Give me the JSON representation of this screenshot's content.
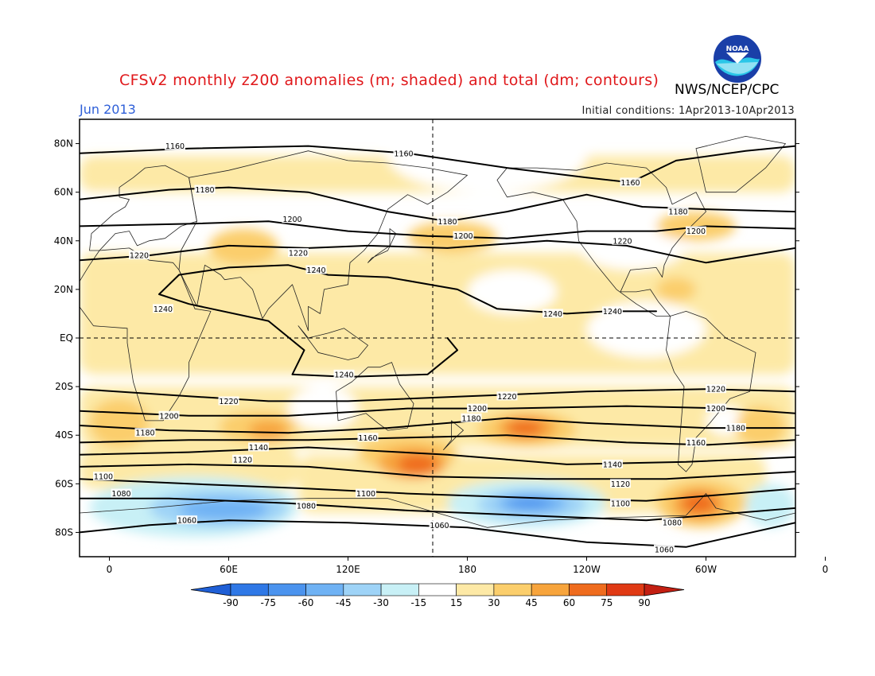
{
  "header": {
    "title": "CFSv2 monthly z200 anomalies (m; shaded) and total (dm; contours)",
    "agency": "NWS/NCEP/CPC",
    "month": "Jun 2013",
    "initial_conditions": "Initial conditions: 1Apr2013-10Apr2013",
    "logo_text": "NOAA"
  },
  "map": {
    "lat_ticks": [
      "80N",
      "60N",
      "40N",
      "20N",
      "EQ",
      "20S",
      "40S",
      "60S",
      "80S"
    ],
    "lon_ticks": [
      "0",
      "60E",
      "120E",
      "180",
      "120W",
      "60W",
      "0"
    ],
    "contour_labels": [
      {
        "text": "1160",
        "lon": 33,
        "lat": 79
      },
      {
        "text": "1160",
        "lon": 148,
        "lat": 76
      },
      {
        "text": "1160",
        "lon": 262,
        "lat": 64
      },
      {
        "text": "1180",
        "lon": 48,
        "lat": 61
      },
      {
        "text": "1180",
        "lon": 170,
        "lat": 48
      },
      {
        "text": "1180",
        "lon": 286,
        "lat": 52
      },
      {
        "text": "1200",
        "lon": 92,
        "lat": 49
      },
      {
        "text": "1200",
        "lon": 178,
        "lat": 42
      },
      {
        "text": "1200",
        "lon": 295,
        "lat": 44
      },
      {
        "text": "1220",
        "lon": 15,
        "lat": 34
      },
      {
        "text": "1220",
        "lon": 95,
        "lat": 35
      },
      {
        "text": "1220",
        "lon": 258,
        "lat": 40
      },
      {
        "text": "1240",
        "lon": 104,
        "lat": 28
      },
      {
        "text": "1240",
        "lon": 27,
        "lat": 12
      },
      {
        "text": "1240",
        "lon": 223,
        "lat": 10
      },
      {
        "text": "1240",
        "lon": 253,
        "lat": 11
      },
      {
        "text": "1240",
        "lon": 118,
        "lat": -15
      },
      {
        "text": "1220",
        "lon": 60,
        "lat": -26
      },
      {
        "text": "1220",
        "lon": 200,
        "lat": -24
      },
      {
        "text": "1220",
        "lon": 305,
        "lat": -21
      },
      {
        "text": "1200",
        "lon": 30,
        "lat": -32
      },
      {
        "text": "1200",
        "lon": 185,
        "lat": -29
      },
      {
        "text": "1200",
        "lon": 305,
        "lat": -29
      },
      {
        "text": "1180",
        "lon": 18,
        "lat": -39
      },
      {
        "text": "1180",
        "lon": 182,
        "lat": -33
      },
      {
        "text": "1180",
        "lon": 315,
        "lat": -37
      },
      {
        "text": "1160",
        "lon": 130,
        "lat": -41
      },
      {
        "text": "1160",
        "lon": 295,
        "lat": -43
      },
      {
        "text": "1140",
        "lon": 75,
        "lat": -45
      },
      {
        "text": "1140",
        "lon": 253,
        "lat": -52
      },
      {
        "text": "1120",
        "lon": 67,
        "lat": -50
      },
      {
        "text": "1120",
        "lon": 257,
        "lat": -60
      },
      {
        "text": "1100",
        "lon": -3,
        "lat": -57
      },
      {
        "text": "1100",
        "lon": 129,
        "lat": -64
      },
      {
        "text": "1100",
        "lon": 257,
        "lat": -68
      },
      {
        "text": "1080",
        "lon": 6,
        "lat": -64
      },
      {
        "text": "1080",
        "lon": 99,
        "lat": -69
      },
      {
        "text": "1080",
        "lon": 283,
        "lat": -76
      },
      {
        "text": "1060",
        "lon": 39,
        "lat": -75
      },
      {
        "text": "1060",
        "lon": 166,
        "lat": -77
      },
      {
        "text": "1060",
        "lon": 279,
        "lat": -87
      }
    ]
  },
  "colorbar": {
    "labels": [
      "-90",
      "-75",
      "-60",
      "-45",
      "-30",
      "-15",
      "15",
      "30",
      "45",
      "60",
      "75",
      "90"
    ],
    "colors": [
      "#1f5fd6",
      "#2f78e6",
      "#4b93ee",
      "#6fb2f4",
      "#9ed3f7",
      "#c8f0f6",
      "#ffffff",
      "#fde9a6",
      "#fbce6c",
      "#f7a43c",
      "#ef6c1e",
      "#e03a14",
      "#c31f12"
    ]
  },
  "colors": {
    "title": "#e0181b",
    "month": "#2e5fd8",
    "land": "#ffffff"
  }
}
